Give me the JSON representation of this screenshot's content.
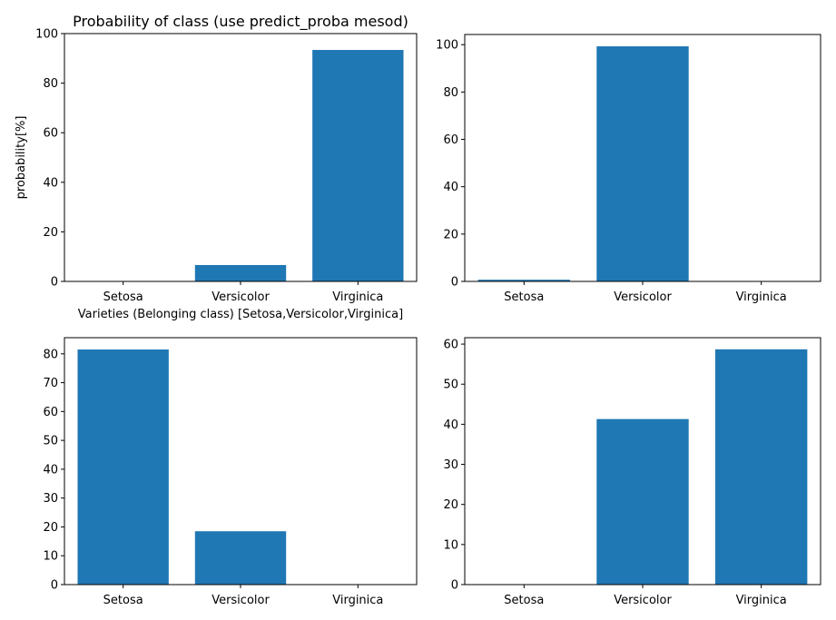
{
  "colors": {
    "bar": "#1f77b4",
    "axis": "#000000",
    "background": "#ffffff"
  },
  "chart_data": [
    {
      "type": "bar",
      "title": "Probability of class (use predict_proba mesod)",
      "xlabel": "Varieties (Belonging class) [Setosa,Versicolor,Virginica]",
      "ylabel": "probability[%]",
      "categories": [
        "Setosa",
        "Versicolor",
        "Virginica"
      ],
      "values": [
        0.0,
        6.6,
        93.4
      ],
      "ylim": [
        0,
        100
      ],
      "yticks": [
        0,
        20,
        40,
        60,
        80,
        100
      ],
      "grid": false
    },
    {
      "type": "bar",
      "title": "",
      "xlabel": "",
      "ylabel": "",
      "categories": [
        "Setosa",
        "Versicolor",
        "Virginica"
      ],
      "values": [
        0.7,
        99.3,
        0.0
      ],
      "ylim": [
        0,
        104.3
      ],
      "yticks": [
        0,
        20,
        40,
        60,
        80,
        100
      ],
      "grid": false
    },
    {
      "type": "bar",
      "title": "",
      "xlabel": "",
      "ylabel": "",
      "categories": [
        "Setosa",
        "Versicolor",
        "Virginica"
      ],
      "values": [
        81.5,
        18.5,
        0.0
      ],
      "ylim": [
        0,
        85.6
      ],
      "yticks": [
        0,
        10,
        20,
        30,
        40,
        50,
        60,
        70,
        80
      ],
      "grid": false
    },
    {
      "type": "bar",
      "title": "",
      "xlabel": "",
      "ylabel": "",
      "categories": [
        "Setosa",
        "Versicolor",
        "Virginica"
      ],
      "values": [
        0.0,
        41.3,
        58.7
      ],
      "ylim": [
        0,
        61.6
      ],
      "yticks": [
        0,
        10,
        20,
        30,
        40,
        50,
        60
      ],
      "grid": false
    }
  ]
}
